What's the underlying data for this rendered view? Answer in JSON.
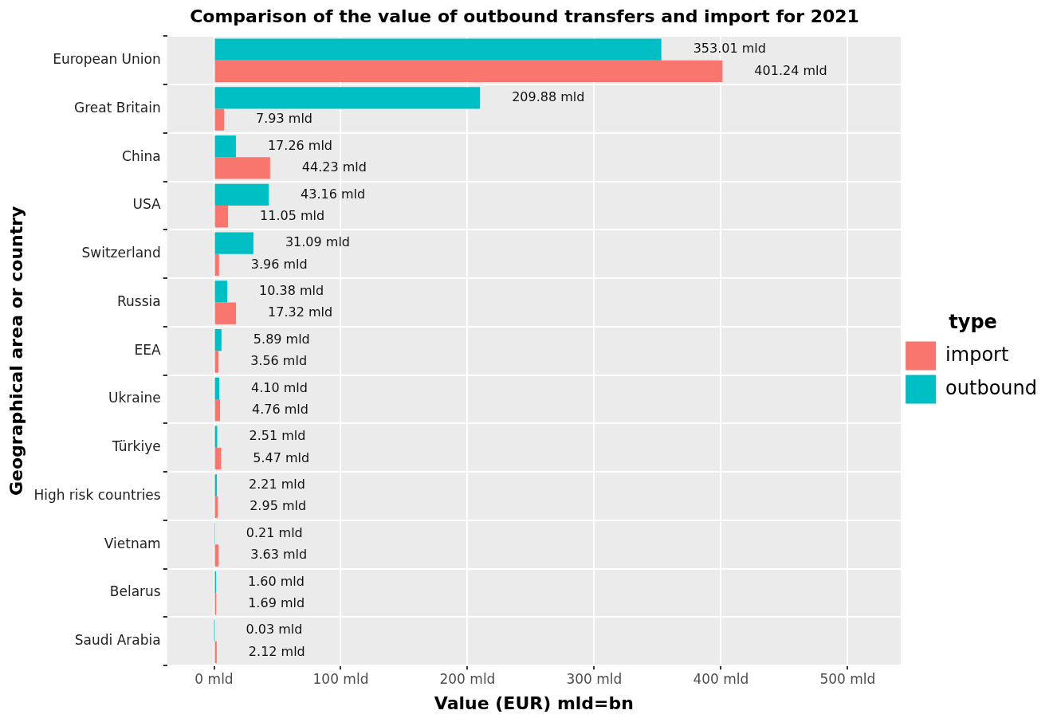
{
  "chart_data": {
    "type": "bar",
    "orientation": "horizontal",
    "title": "Comparison of the value of outbound transfers and import for 2021",
    "xlabel": "Value (EUR) mld=bn",
    "ylabel": "Geographical area or country",
    "legend_title": "type",
    "legend": "right",
    "categories": [
      "European Union",
      "Great Britain",
      "China",
      "USA",
      "Switzerland",
      "Russia",
      "EEA",
      "Ukraine",
      "Türkiye",
      "High risk countries",
      "Vietnam",
      "Belarus",
      "Saudi Arabia"
    ],
    "series": [
      {
        "name": "import",
        "color": "#f8766d",
        "values": [
          401.24,
          7.93,
          44.23,
          11.05,
          3.96,
          17.32,
          3.56,
          4.76,
          5.47,
          2.95,
          3.63,
          1.69,
          2.12
        ],
        "value_labels": [
          "401.24 mld",
          "7.93 mld",
          "44.23 mld",
          "11.05 mld",
          "3.96 mld",
          "17.32 mld",
          "3.56 mld",
          "4.76 mld",
          "5.47 mld",
          "2.95 mld",
          "3.63 mld",
          "1.69 mld",
          "2.12 mld"
        ]
      },
      {
        "name": "outbound",
        "color": "#00bfc4",
        "values": [
          353.01,
          209.88,
          17.26,
          43.16,
          31.09,
          10.38,
          5.89,
          4.1,
          2.51,
          2.21,
          0.21,
          1.6,
          0.03
        ],
        "value_labels": [
          "353.01 mld",
          "209.88 mld",
          "17.26 mld",
          "43.16 mld",
          "31.09 mld",
          "10.38 mld",
          "5.89 mld",
          "4.10 mld",
          "2.51 mld",
          "2.21 mld",
          "0.21 mld",
          "1.60 mld",
          "0.03 mld"
        ]
      }
    ],
    "xlim": [
      -37,
      542
    ],
    "xticks": [
      {
        "value": 0,
        "label": "0 mld"
      },
      {
        "value": 100,
        "label": "100 mld"
      },
      {
        "value": 200,
        "label": "200 mld"
      },
      {
        "value": 300,
        "label": "300 mld"
      },
      {
        "value": 400,
        "label": "400 mld"
      },
      {
        "value": 500,
        "label": "500 mld"
      }
    ],
    "grid": true
  }
}
